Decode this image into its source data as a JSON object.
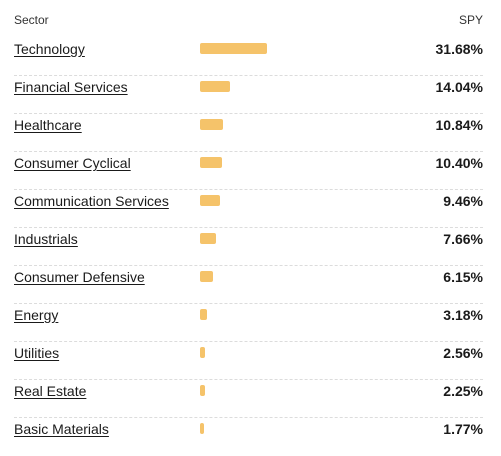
{
  "header": {
    "sector_label": "Sector",
    "spy_label": "SPY"
  },
  "bar_color": "#f5c36a",
  "sectors": [
    {
      "name": "Technology",
      "pct_text": "31.68%",
      "value": 31.68
    },
    {
      "name": "Financial Services",
      "pct_text": "14.04%",
      "value": 14.04
    },
    {
      "name": "Healthcare",
      "pct_text": "10.84%",
      "value": 10.84
    },
    {
      "name": "Consumer Cyclical",
      "pct_text": "10.40%",
      "value": 10.4
    },
    {
      "name": "Communication Services",
      "pct_text": "9.46%",
      "value": 9.46
    },
    {
      "name": "Industrials",
      "pct_text": "7.66%",
      "value": 7.66
    },
    {
      "name": "Consumer Defensive",
      "pct_text": "6.15%",
      "value": 6.15
    },
    {
      "name": "Energy",
      "pct_text": "3.18%",
      "value": 3.18
    },
    {
      "name": "Utilities",
      "pct_text": "2.56%",
      "value": 2.56
    },
    {
      "name": "Real Estate",
      "pct_text": "2.25%",
      "value": 2.25
    },
    {
      "name": "Basic Materials",
      "pct_text": "1.77%",
      "value": 1.77
    }
  ]
}
